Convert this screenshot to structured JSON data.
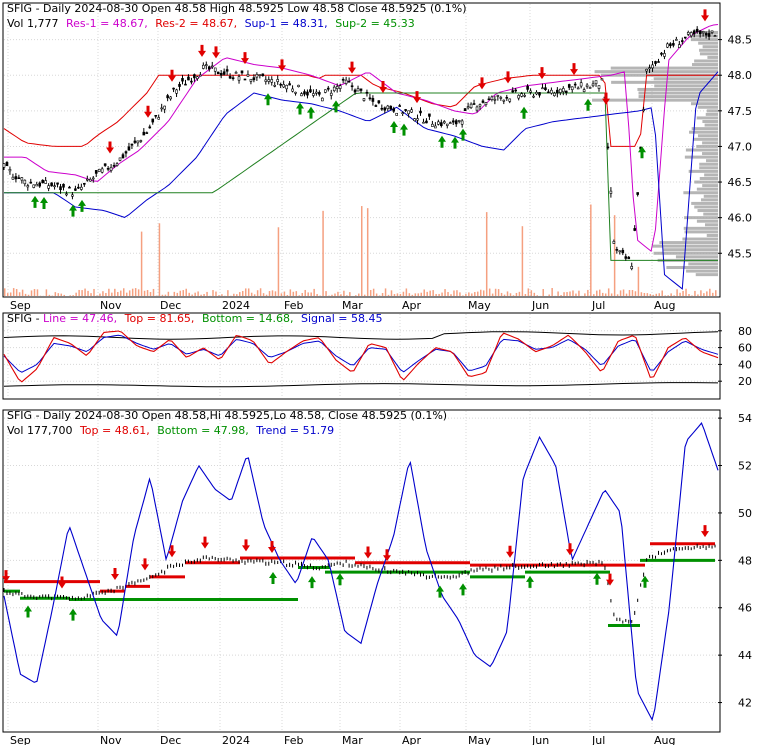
{
  "colors": {
    "red": "#e00000",
    "green": "#009000",
    "blue": "#0000cc",
    "magenta": "#cc00cc",
    "darkgreen": "#208020",
    "black": "#000000",
    "salmon": "#f5a080",
    "grid": "#d8d8d8",
    "volprofile": "#a8a8a8"
  },
  "months": [
    "Sep",
    "Nov",
    "Dec",
    "2024",
    "Feb",
    "Mar",
    "Apr",
    "May",
    "Jun",
    "Jul",
    "Aug"
  ],
  "chart_data": [
    {
      "type": "candlestick",
      "header": {
        "line1_prefix": "SFIG - Daily 2024-08-30 Open 48.58  High 48.5925  Low 48.58  Close 48.5925 (0.1%)",
        "vol_label": "Vol 1,777",
        "res1_label": "Res-1 = 48.67,",
        "res2_label": "Res-2 = 48.67,",
        "sup1_label": "Sup-1 = 48.31,",
        "sup2_label": "Sup-2 = 45.33"
      },
      "yticks": [
        "48.5",
        "48.0",
        "47.5",
        "47.0",
        "46.5",
        "46.0",
        "45.5"
      ],
      "ylim": [
        44.9,
        49.0
      ],
      "price_path": [
        [
          0,
          46.7
        ],
        [
          0.03,
          46.5
        ],
        [
          0.07,
          46.45
        ],
        [
          0.1,
          46.35
        ],
        [
          0.13,
          46.6
        ],
        [
          0.16,
          46.8
        ],
        [
          0.2,
          47.2
        ],
        [
          0.24,
          47.8
        ],
        [
          0.28,
          48.1
        ],
        [
          0.32,
          48.0
        ],
        [
          0.36,
          47.95
        ],
        [
          0.4,
          47.85
        ],
        [
          0.44,
          47.7
        ],
        [
          0.48,
          47.9
        ],
        [
          0.52,
          47.6
        ],
        [
          0.56,
          47.5
        ],
        [
          0.6,
          47.35
        ],
        [
          0.63,
          47.3
        ],
        [
          0.66,
          47.6
        ],
        [
          0.7,
          47.7
        ],
        [
          0.74,
          47.75
        ],
        [
          0.78,
          47.8
        ],
        [
          0.82,
          47.85
        ],
        [
          0.84,
          47.9
        ],
        [
          0.855,
          45.55
        ],
        [
          0.88,
          45.35
        ],
        [
          0.9,
          48.05
        ],
        [
          0.93,
          48.4
        ],
        [
          0.96,
          48.55
        ],
        [
          1.0,
          48.6
        ]
      ]
    },
    {
      "type": "line",
      "header": {
        "prefix": "SFIG - ",
        "line_label": "Line = 47.46,",
        "top_label": "Top = 81.65,",
        "bottom_label": "Bottom = 14.68,",
        "signal_label": "Signal = 58.45"
      },
      "yticks": [
        "80",
        "60",
        "40",
        "20"
      ],
      "ylim": [
        0,
        100
      ],
      "series": [
        {
          "values": [
            52,
            18,
            35,
            72,
            65,
            50,
            78,
            80,
            62,
            55,
            70,
            48,
            60,
            45,
            75,
            68,
            40,
            55,
            68,
            72,
            45,
            30,
            65,
            60,
            20,
            42,
            60,
            55,
            25,
            30,
            78,
            70,
            55,
            62,
            75,
            55,
            30,
            68,
            75,
            20,
            60,
            72,
            55,
            48
          ]
        },
        {
          "values": [
            50,
            30,
            40,
            65,
            62,
            55,
            72,
            75,
            65,
            58,
            65,
            52,
            58,
            50,
            70,
            65,
            48,
            55,
            65,
            68,
            50,
            38,
            60,
            58,
            30,
            45,
            58,
            55,
            32,
            38,
            70,
            68,
            58,
            60,
            70,
            58,
            38,
            62,
            70,
            30,
            55,
            68,
            58,
            52
          ]
        }
      ]
    },
    {
      "type": "line",
      "header": {
        "line1": "SFIG - Daily 2024-08-30 Open 48.58,Hi 48.5925,Lo 48.58, Close 48.5925 (0.1%)",
        "vol_label": "Vol 177,700",
        "top_label": "Top = 48.61,",
        "bottom_label": "Bottom = 47.98,",
        "trend_label": "Trend = 51.79"
      },
      "yticks": [
        "54",
        "52",
        "50",
        "48",
        "46",
        "44",
        "42"
      ],
      "ylim": [
        40.8,
        54.3
      ],
      "trend": [
        46.5,
        43.2,
        42.8,
        46,
        49.5,
        47.5,
        45.5,
        44.8,
        49,
        51.5,
        48,
        50.5,
        52,
        51,
        50.5,
        52.5,
        49.5,
        48,
        47,
        49,
        48,
        45,
        44.5,
        47,
        49,
        52.3,
        48.5,
        46.5,
        45.5,
        44,
        43.5,
        45,
        51.5,
        53.2,
        52,
        48,
        49.5,
        51,
        50,
        42.5,
        41.2,
        46,
        53,
        53.8,
        51.8
      ]
    }
  ]
}
